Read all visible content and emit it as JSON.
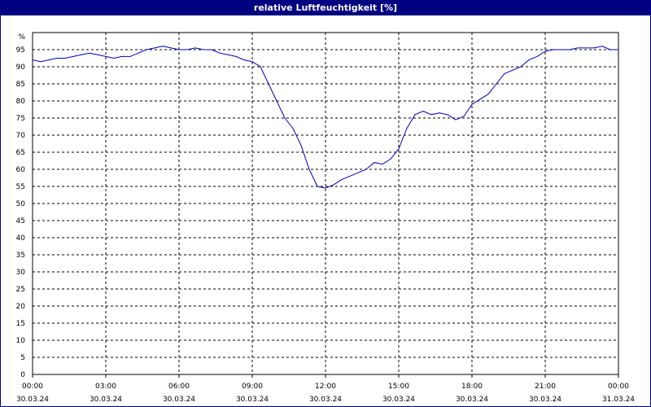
{
  "window": {
    "title": "relative Luftfeuchtigkeit [%]"
  },
  "colors": {
    "titlebar": "#000080",
    "line": "#0000c0",
    "grid": "#000000"
  },
  "chart_data": {
    "type": "line",
    "title": "relative Luftfeuchtigkeit [%]",
    "ylabel": "%",
    "xlabel": "",
    "ylim": [
      0,
      100
    ],
    "yticks": [
      0,
      5,
      10,
      15,
      20,
      25,
      30,
      35,
      40,
      45,
      50,
      55,
      60,
      65,
      70,
      75,
      80,
      85,
      90,
      95
    ],
    "xlim": [
      "2024-03-30 00:00",
      "2024-03-31 00:00"
    ],
    "xticks": [
      {
        "time": "00:00",
        "date": "30.03.24"
      },
      {
        "time": "03:00",
        "date": "30.03.24"
      },
      {
        "time": "06:00",
        "date": "30.03.24"
      },
      {
        "time": "09:00",
        "date": "30.03.24"
      },
      {
        "time": "12:00",
        "date": "30.03.24"
      },
      {
        "time": "15:00",
        "date": "30.03.24"
      },
      {
        "time": "18:00",
        "date": "30.03.24"
      },
      {
        "time": "21:00",
        "date": "30.03.24"
      },
      {
        "time": "00:00",
        "date": "31.03.24"
      }
    ],
    "grid": true,
    "series": [
      {
        "x": [
          "00:00",
          "00:20",
          "00:40",
          "01:00",
          "01:20",
          "01:40",
          "02:00",
          "02:20",
          "02:40",
          "03:00",
          "03:20",
          "03:40",
          "04:00",
          "04:20",
          "04:40",
          "05:00",
          "05:20",
          "05:40",
          "06:00",
          "06:20",
          "06:40",
          "07:00",
          "07:20",
          "07:40",
          "08:00",
          "08:20",
          "08:40",
          "09:00",
          "09:20",
          "09:40",
          "10:00",
          "10:20",
          "10:40",
          "11:00",
          "11:20",
          "11:40",
          "12:00",
          "12:20",
          "12:40",
          "13:00",
          "13:20",
          "13:40",
          "14:00",
          "14:20",
          "14:40",
          "15:00",
          "15:20",
          "15:40",
          "16:00",
          "16:20",
          "16:40",
          "17:00",
          "17:20",
          "17:40",
          "18:00",
          "18:20",
          "18:40",
          "19:00",
          "19:20",
          "19:40",
          "20:00",
          "20:20",
          "20:40",
          "21:00",
          "21:20",
          "21:40",
          "22:00",
          "22:20",
          "22:40",
          "23:00",
          "23:20",
          "23:40",
          "24:00"
        ],
        "values": [
          92,
          91.5,
          92,
          92.5,
          92.5,
          93,
          93.5,
          94,
          93.5,
          93,
          92.5,
          93,
          93,
          94,
          95,
          95.5,
          96,
          95.5,
          95,
          95,
          95.5,
          95,
          95,
          94,
          93.5,
          93,
          92,
          91.5,
          90,
          85,
          80,
          75,
          72,
          67,
          60,
          55,
          54.5,
          55.5,
          57,
          58,
          59,
          60,
          62,
          61.5,
          63,
          66,
          72,
          76,
          77,
          76,
          76.5,
          76,
          74.5,
          75.5,
          79,
          80.5,
          82,
          85,
          88,
          89,
          90,
          92,
          93,
          94.5,
          95,
          95,
          95,
          95.5,
          95.5,
          95.5,
          96,
          95,
          95
        ]
      }
    ]
  }
}
